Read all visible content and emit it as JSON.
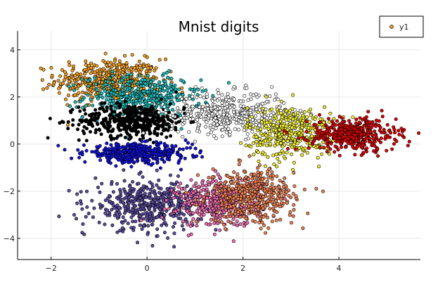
{
  "chart_data": {
    "type": "scatter",
    "title": "Mnist digits",
    "xlabel": "",
    "ylabel": "",
    "xlim": [
      -2.7,
      5.7
    ],
    "ylim": [
      -4.9,
      4.8
    ],
    "xticks": [
      -2,
      0,
      2,
      4
    ],
    "yticks": [
      -4,
      -2,
      0,
      2,
      4
    ],
    "grid": true,
    "legend": {
      "position": "top-right",
      "entries": [
        "y1"
      ]
    },
    "series": [
      {
        "name": "y1",
        "clusters": [
          {
            "color": "#f59d1a",
            "center": [
              -0.8,
              2.7
            ],
            "spread": [
              0.55,
              0.45
            ],
            "count": 450
          },
          {
            "color": "#1bbcbc",
            "center": [
              -0.1,
              2.0
            ],
            "spread": [
              0.6,
              0.45
            ],
            "count": 420
          },
          {
            "color": "#000000",
            "center": [
              -0.3,
              1.0
            ],
            "spread": [
              0.55,
              0.35
            ],
            "count": 450
          },
          {
            "color": "#ffffff",
            "center": [
              1.7,
              1.3
            ],
            "spread": [
              0.6,
              0.45
            ],
            "count": 420
          },
          {
            "color": "#f2ef2c",
            "center": [
              3.0,
              0.5
            ],
            "spread": [
              0.45,
              0.55
            ],
            "count": 400
          },
          {
            "color": "#e00000",
            "center": [
              4.3,
              0.4
            ],
            "spread": [
              0.45,
              0.35
            ],
            "count": 420
          },
          {
            "color": "#1010e0",
            "center": [
              -0.2,
              -0.4
            ],
            "spread": [
              0.55,
              0.2
            ],
            "count": 420
          },
          {
            "color": "#5a4a9e",
            "center": [
              0.0,
              -2.6
            ],
            "spread": [
              0.55,
              0.5
            ],
            "count": 450
          },
          {
            "color": "#f06ab0",
            "center": [
              1.5,
              -2.5
            ],
            "spread": [
              0.45,
              0.5
            ],
            "count": 420
          },
          {
            "color": "#f08050",
            "center": [
              2.2,
              -2.2
            ],
            "spread": [
              0.45,
              0.55
            ],
            "count": 420
          }
        ]
      }
    ]
  }
}
